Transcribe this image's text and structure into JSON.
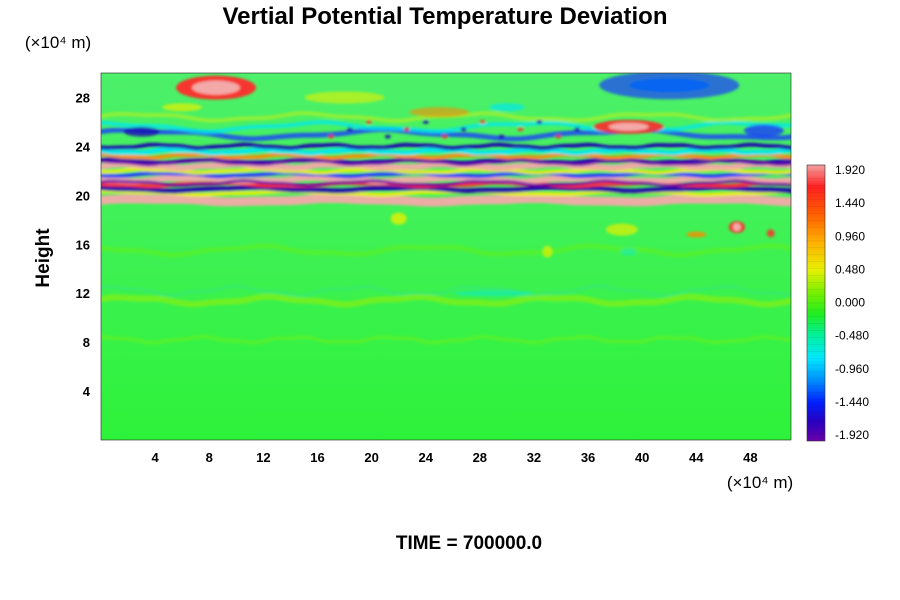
{
  "chart_data": {
    "type": "heatmap",
    "title": "Vertial Potential Temperature Deviation",
    "ylabel": "Height",
    "y_unit": "(×10⁴ m)",
    "x_unit": "(×10⁴ m)",
    "footer": "TIME = 700000.0",
    "x_ticks": [
      "4",
      "8",
      "12",
      "16",
      "20",
      "24",
      "28",
      "32",
      "36",
      "40",
      "44",
      "48"
    ],
    "y_ticks": [
      "4",
      "8",
      "12",
      "16",
      "20",
      "24",
      "28"
    ],
    "xlim": [
      0,
      51
    ],
    "ylim": [
      0,
      30
    ],
    "colorbar": {
      "labels": [
        "1.920",
        "1.440",
        "0.960",
        "0.480",
        "0.000",
        "-0.480",
        "-0.960",
        "-1.440",
        "-1.920"
      ],
      "range": [
        -1.92,
        1.92
      ]
    },
    "field": {
      "description_layers": [
        {
          "y_range": [
            0,
            18
          ],
          "value_approx": 0.0
        },
        {
          "y_range": [
            19,
            24
          ],
          "value_approx": "alternating ±1.92 bands"
        },
        {
          "y_range": [
            24,
            30
          ],
          "value_approx": "mixed -1.4 to +1.9"
        }
      ],
      "features": [
        {
          "x": 8,
          "y": 28.8,
          "value": 1.9
        },
        {
          "x": 42,
          "y": 29.0,
          "value": -1.4
        },
        {
          "x": 39,
          "y": 25.6,
          "value": 1.9
        },
        {
          "x": 47,
          "y": 17.5,
          "value": 1.9
        }
      ]
    }
  }
}
